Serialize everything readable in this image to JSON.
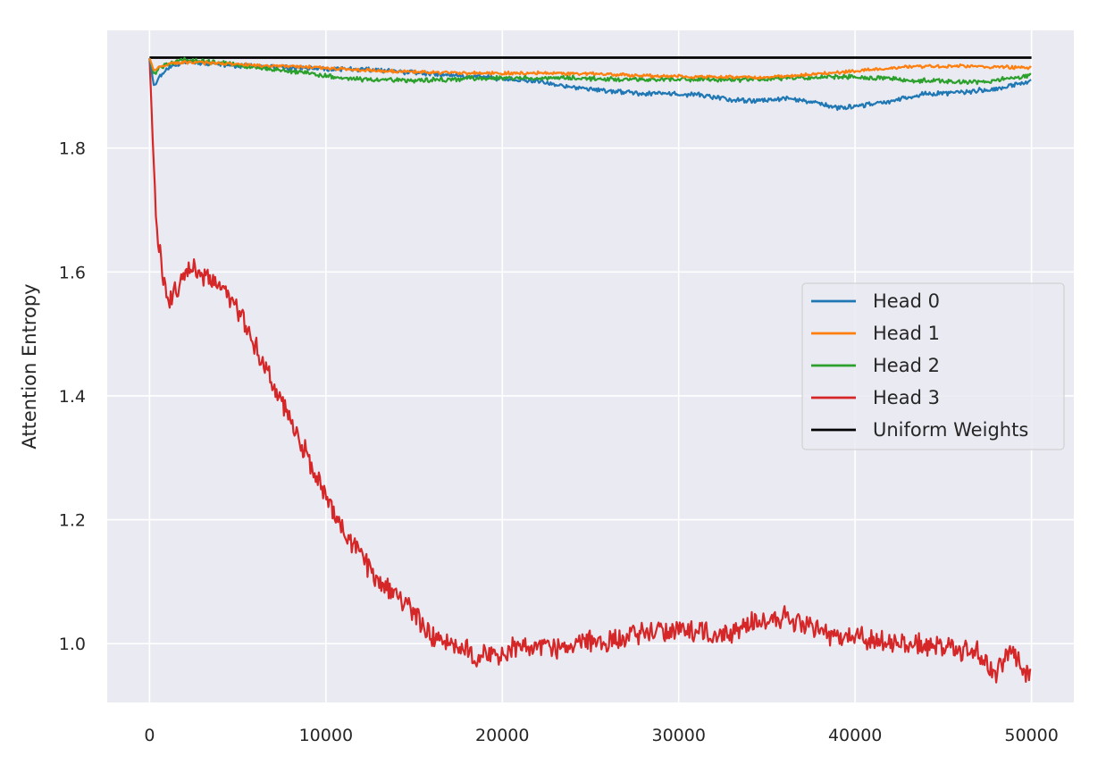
{
  "chart_data": {
    "type": "line",
    "title": "",
    "xlabel": "",
    "ylabel": "Attention Entropy",
    "xlim": [
      -2400,
      52400
    ],
    "ylim": [
      0.905,
      1.99
    ],
    "xticks": [
      0,
      10000,
      20000,
      30000,
      40000,
      50000
    ],
    "xtick_labels": [
      "0",
      "10000",
      "20000",
      "30000",
      "40000",
      "50000"
    ],
    "yticks": [
      1.0,
      1.2,
      1.4,
      1.6,
      1.8
    ],
    "ytick_labels": [
      "1.0",
      "1.2",
      "1.4",
      "1.6",
      "1.8"
    ],
    "grid": true,
    "legend_position": "center-right",
    "background": "#eaeaf2",
    "series": [
      {
        "name": "Head 0",
        "color": "#1f77b4",
        "x": [
          0,
          250,
          500,
          1000,
          1500,
          2000,
          3000,
          4000,
          5000,
          6000,
          7000,
          8000,
          9000,
          10000,
          11000,
          12000,
          13000,
          14000,
          15000,
          16000,
          17000,
          18000,
          19000,
          20000,
          21000,
          22000,
          23000,
          24000,
          25000,
          26000,
          27000,
          28000,
          29000,
          30000,
          31000,
          32000,
          33000,
          34000,
          35000,
          36000,
          37000,
          38000,
          39000,
          40000,
          41000,
          42000,
          43000,
          44000,
          45000,
          46000,
          47000,
          48000,
          49000,
          50000
        ],
        "y": [
          1.945,
          1.9,
          1.912,
          1.93,
          1.935,
          1.94,
          1.937,
          1.935,
          1.933,
          1.932,
          1.93,
          1.93,
          1.929,
          1.928,
          1.927,
          1.927,
          1.926,
          1.924,
          1.922,
          1.92,
          1.918,
          1.915,
          1.915,
          1.912,
          1.91,
          1.908,
          1.903,
          1.897,
          1.895,
          1.892,
          1.89,
          1.888,
          1.888,
          1.887,
          1.887,
          1.882,
          1.878,
          1.876,
          1.878,
          1.88,
          1.878,
          1.872,
          1.865,
          1.866,
          1.872,
          1.876,
          1.883,
          1.887,
          1.888,
          1.89,
          1.893,
          1.895,
          1.902,
          1.908
        ]
      },
      {
        "name": "Head 1",
        "color": "#ff7f0e",
        "x": [
          0,
          250,
          500,
          1000,
          1500,
          2000,
          3000,
          4000,
          5000,
          6000,
          7000,
          8000,
          9000,
          10000,
          11000,
          12000,
          13000,
          14000,
          15000,
          16000,
          17000,
          18000,
          19000,
          20000,
          21000,
          22000,
          23000,
          24000,
          25000,
          26000,
          27000,
          28000,
          29000,
          30000,
          31000,
          32000,
          33000,
          34000,
          35000,
          36000,
          37000,
          38000,
          39000,
          40000,
          41000,
          42000,
          43000,
          44000,
          45000,
          46000,
          47000,
          48000,
          49000,
          50000
        ],
        "y": [
          1.945,
          1.925,
          1.93,
          1.935,
          1.937,
          1.938,
          1.938,
          1.936,
          1.935,
          1.934,
          1.933,
          1.932,
          1.931,
          1.929,
          1.928,
          1.926,
          1.925,
          1.924,
          1.923,
          1.922,
          1.922,
          1.921,
          1.921,
          1.921,
          1.921,
          1.921,
          1.921,
          1.92,
          1.92,
          1.919,
          1.918,
          1.917,
          1.916,
          1.916,
          1.915,
          1.915,
          1.915,
          1.914,
          1.915,
          1.916,
          1.918,
          1.92,
          1.922,
          1.924,
          1.927,
          1.929,
          1.931,
          1.932,
          1.932,
          1.933,
          1.932,
          1.931,
          1.93,
          1.93
        ]
      },
      {
        "name": "Head 2",
        "color": "#2ca02c",
        "x": [
          0,
          250,
          500,
          1000,
          1500,
          2000,
          3000,
          4000,
          5000,
          6000,
          7000,
          8000,
          9000,
          10000,
          11000,
          12000,
          13000,
          14000,
          15000,
          16000,
          17000,
          18000,
          19000,
          20000,
          21000,
          22000,
          23000,
          24000,
          25000,
          26000,
          27000,
          28000,
          29000,
          30000,
          31000,
          32000,
          33000,
          34000,
          35000,
          36000,
          37000,
          38000,
          39000,
          40000,
          41000,
          42000,
          43000,
          44000,
          45000,
          46000,
          47000,
          48000,
          49000,
          50000
        ],
        "y": [
          1.945,
          1.92,
          1.928,
          1.935,
          1.94,
          1.942,
          1.94,
          1.937,
          1.934,
          1.93,
          1.927,
          1.924,
          1.92,
          1.916,
          1.913,
          1.911,
          1.91,
          1.91,
          1.909,
          1.91,
          1.911,
          1.912,
          1.913,
          1.913,
          1.913,
          1.913,
          1.913,
          1.913,
          1.912,
          1.911,
          1.911,
          1.911,
          1.911,
          1.911,
          1.911,
          1.911,
          1.911,
          1.911,
          1.912,
          1.913,
          1.914,
          1.915,
          1.915,
          1.915,
          1.914,
          1.912,
          1.91,
          1.909,
          1.908,
          1.907,
          1.907,
          1.909,
          1.913,
          1.918
        ]
      },
      {
        "name": "Head 3",
        "color": "#d62728",
        "x": [
          0,
          200,
          400,
          700,
          1000,
          1500,
          2000,
          2500,
          3000,
          3500,
          4000,
          4500,
          5000,
          5500,
          6000,
          6500,
          7000,
          7500,
          8000,
          8500,
          9000,
          9500,
          10000,
          10500,
          11000,
          11500,
          12000,
          12500,
          13000,
          13500,
          14000,
          14500,
          15000,
          15500,
          16000,
          17000,
          18000,
          18500,
          19000,
          20000,
          21000,
          22000,
          23000,
          24000,
          25000,
          26000,
          27000,
          28000,
          29000,
          30000,
          31000,
          32000,
          33000,
          34000,
          35000,
          36000,
          37000,
          38000,
          39000,
          40000,
          41000,
          42000,
          43000,
          44000,
          45000,
          46000,
          47000,
          47500,
          48000,
          48500,
          49000,
          49500,
          50000
        ],
        "y": [
          1.945,
          1.8,
          1.68,
          1.6,
          1.55,
          1.57,
          1.6,
          1.61,
          1.59,
          1.59,
          1.58,
          1.56,
          1.54,
          1.51,
          1.48,
          1.45,
          1.42,
          1.39,
          1.36,
          1.33,
          1.3,
          1.27,
          1.24,
          1.21,
          1.18,
          1.16,
          1.14,
          1.12,
          1.1,
          1.085,
          1.075,
          1.065,
          1.05,
          1.03,
          1.01,
          0.995,
          0.99,
          0.975,
          0.98,
          0.985,
          0.995,
          1.0,
          0.99,
          1.005,
          1.005,
          1.005,
          1.01,
          1.015,
          1.02,
          1.02,
          1.02,
          1.015,
          1.02,
          1.03,
          1.035,
          1.04,
          1.03,
          1.02,
          1.01,
          1.01,
          1.005,
          1.0,
          1.0,
          0.995,
          0.995,
          0.99,
          0.99,
          0.96,
          0.95,
          0.975,
          0.985,
          0.96,
          0.945
        ]
      },
      {
        "name": "Uniform Weights",
        "color": "#000000",
        "x": [
          0,
          50000
        ],
        "y": [
          1.946,
          1.946
        ]
      }
    ]
  }
}
